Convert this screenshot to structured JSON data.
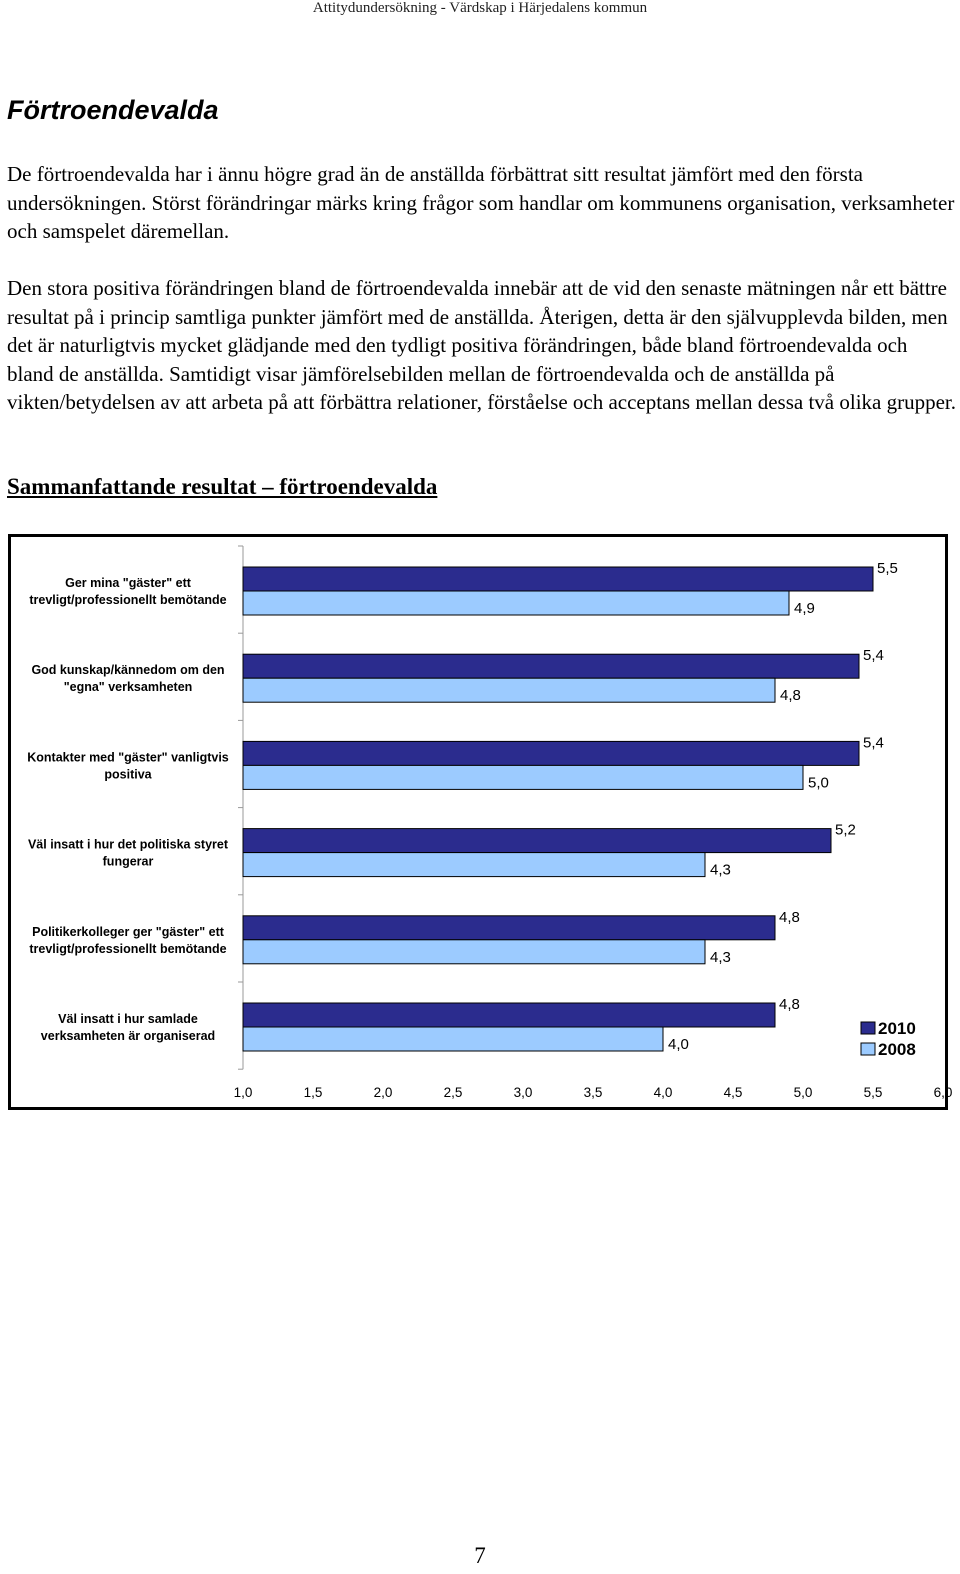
{
  "header": {
    "text": "Attitydundersökning - Värdskap i Härjedalens kommun"
  },
  "section": {
    "title": "Förtroendevalda"
  },
  "paragraphs": {
    "p1": "De förtroendevalda har i ännu högre grad än de anställda förbättrat sitt resultat jämfört med den första undersökningen. Störst förändringar märks kring frågor som handlar om kommunens organisation, verksamheter och samspelet däremellan.",
    "p2": "Den stora positiva förändringen bland de förtroendevalda innebär att de vid den senaste mätningen når ett bättre resultat på i princip samtliga punkter jämfört med de anställda. Återigen, detta är den självupplevda bilden, men det är naturligtvis mycket glädjande med den tydligt positiva förändringen, både bland förtroendevalda och bland de anställda. Samtidigt visar jämförelsebilden mellan de förtroendevalda och de anställda på vikten/betydelsen av att arbeta på att förbättra relationer, förståelse och acceptans mellan dessa två olika grupper."
  },
  "subheading": "Sammanfattande resultat – förtroendevalda",
  "chart_data": {
    "type": "bar",
    "orientation": "horizontal",
    "categories": [
      "Ger mina \"gäster\" ett trevligt/professionellt bemötande",
      "God kunskap/kännedom om den \"egna\" verksamheten",
      "Kontakter med \"gäster\" vanligtvis positiva",
      "Väl insatt i hur det politiska styret fungerar",
      "Politikerkolleger ger \"gäster\" ett trevligt/professionellt bemötande",
      "Väl insatt i hur samlade verksamheten är organiserad"
    ],
    "category_lines": [
      [
        "Ger mina \"gäster\" ett",
        "trevligt/professionellt bemötande"
      ],
      [
        "God kunskap/kännedom om den",
        "\"egna\" verksamheten"
      ],
      [
        "Kontakter med \"gäster\" vanligtvis",
        "positiva"
      ],
      [
        "Väl insatt i hur det politiska styret",
        "fungerar"
      ],
      [
        "Politikerkolleger ger \"gäster\" ett",
        "trevligt/professionellt bemötande"
      ],
      [
        "Väl insatt i hur samlade",
        "verksamheten är organiserad"
      ]
    ],
    "series": [
      {
        "name": "2010",
        "color": "#2B2C8E",
        "values": [
          5.5,
          5.4,
          5.4,
          5.2,
          4.8,
          4.8
        ],
        "labels": [
          "5,5",
          "5,4",
          "5,4",
          "5,2",
          "4,8",
          "4,8"
        ]
      },
      {
        "name": "2008",
        "color": "#9CCBFF",
        "values": [
          4.9,
          4.8,
          5.0,
          4.3,
          4.3,
          4.0
        ],
        "labels": [
          "4,9",
          "4,8",
          "5,0",
          "4,3",
          "4,3",
          "4,0"
        ]
      }
    ],
    "xlim": [
      1.0,
      6.0
    ],
    "xticks": [
      1.0,
      1.5,
      2.0,
      2.5,
      3.0,
      3.5,
      4.0,
      4.5,
      5.0,
      5.5,
      6.0
    ],
    "xtick_labels": [
      "1,0",
      "1,5",
      "2,0",
      "2,5",
      "3,0",
      "3,5",
      "4,0",
      "4,5",
      "5,0",
      "5,5",
      "6,0"
    ],
    "grid": false,
    "legend_position": "bottom-right"
  },
  "page_number": "7"
}
